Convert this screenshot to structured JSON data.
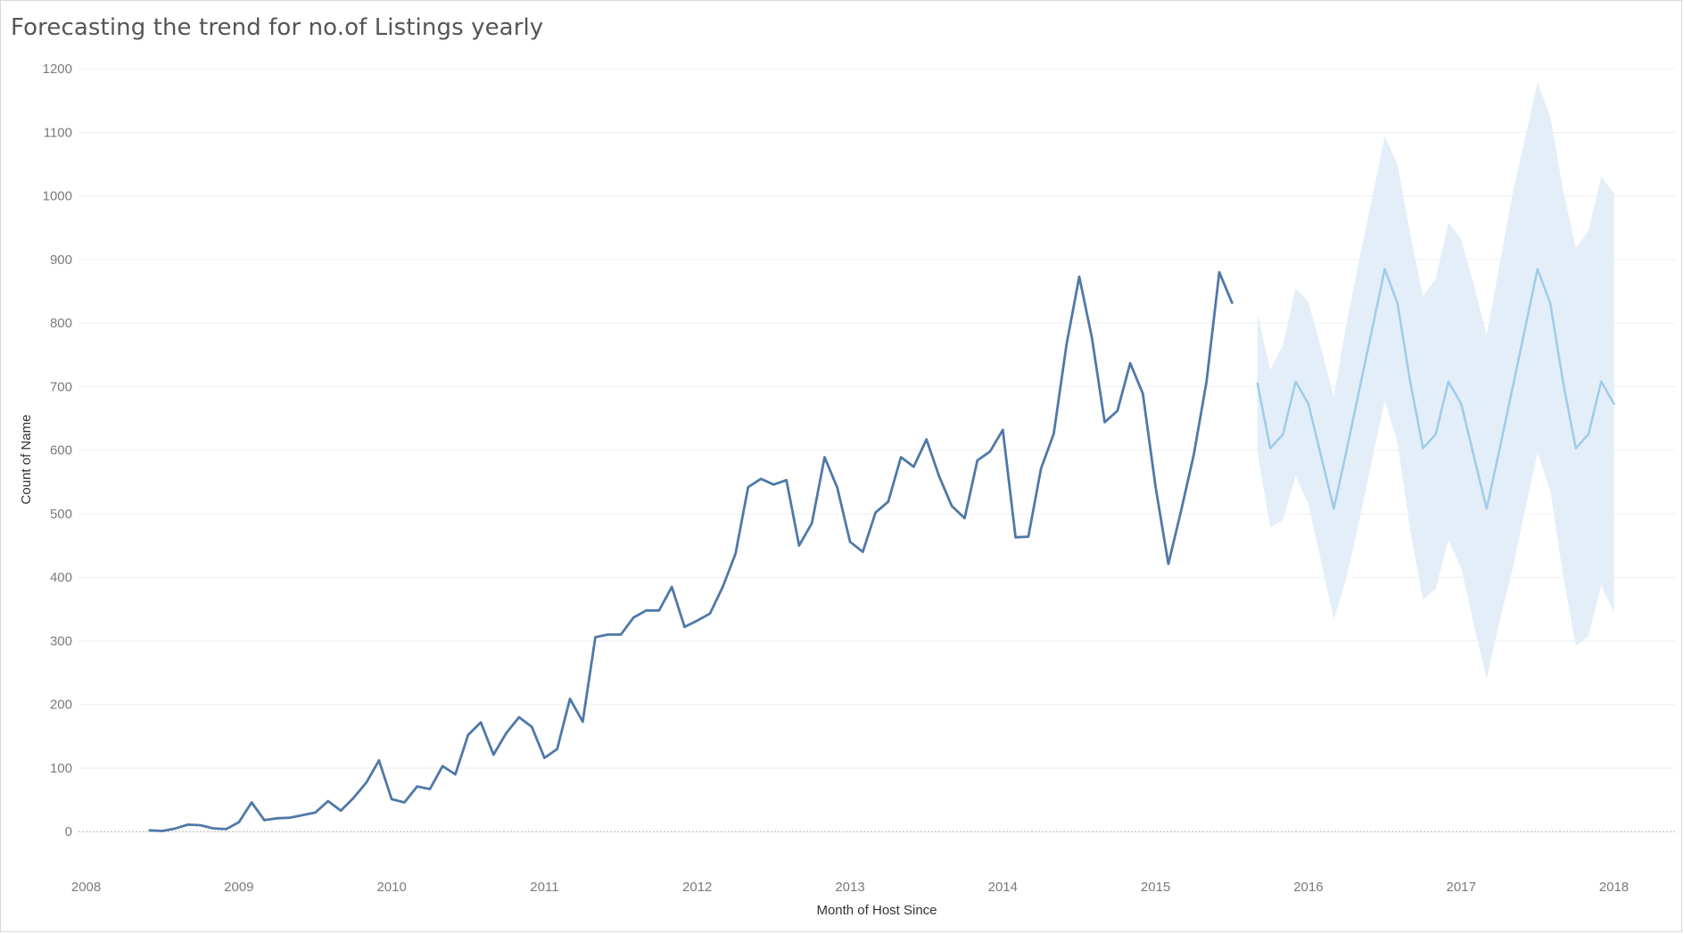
{
  "chart_data": {
    "type": "line",
    "title": "Forecasting the trend for no.of Listings yearly",
    "xlabel": "Month of Host Since",
    "ylabel": "Count of Name",
    "ylim": [
      -60,
      1210
    ],
    "xlim": [
      2007.95,
      2018.4
    ],
    "yticks": [
      0,
      100,
      200,
      300,
      400,
      500,
      600,
      700,
      800,
      900,
      1000,
      1100,
      1200
    ],
    "xticks": [
      2008,
      2009,
      2010,
      2011,
      2012,
      2013,
      2014,
      2015,
      2016,
      2017,
      2018
    ],
    "ytick_labels": [
      "0",
      "100",
      "200",
      "300",
      "400",
      "500",
      "600",
      "700",
      "800",
      "900",
      "1000",
      "1100",
      "1200"
    ],
    "xtick_labels": [
      "2008",
      "2009",
      "2010",
      "2011",
      "2012",
      "2013",
      "2014",
      "2015",
      "2016",
      "2017",
      "2018"
    ],
    "grid": true,
    "colors": {
      "actual": "#4e79a7",
      "forecast": "#a0cbe8",
      "band": "#e3eef8",
      "grid": "#efefef",
      "zero": "#b0b0b0"
    },
    "series": [
      {
        "kind": "actual",
        "x": [
          "2008-06",
          "2008-07",
          "2008-08",
          "2008-09",
          "2008-10",
          "2008-11",
          "2008-12",
          "2009-01",
          "2009-02",
          "2009-03",
          "2009-04",
          "2009-05",
          "2009-06",
          "2009-07",
          "2009-08",
          "2009-09",
          "2009-10",
          "2009-11",
          "2009-12",
          "2010-01",
          "2010-02",
          "2010-03",
          "2010-04",
          "2010-05",
          "2010-06",
          "2010-07",
          "2010-08",
          "2010-09",
          "2010-10",
          "2010-11",
          "2010-12",
          "2011-01",
          "2011-02",
          "2011-03",
          "2011-04",
          "2011-05",
          "2011-06",
          "2011-07",
          "2011-08",
          "2011-09",
          "2011-10",
          "2011-11",
          "2011-12",
          "2012-01",
          "2012-02",
          "2012-03",
          "2012-04",
          "2012-05",
          "2012-06",
          "2012-07",
          "2012-08",
          "2012-09",
          "2012-10",
          "2012-11",
          "2012-12",
          "2013-01",
          "2013-02",
          "2013-03",
          "2013-04",
          "2013-05",
          "2013-06",
          "2013-07",
          "2013-08",
          "2013-09",
          "2013-10",
          "2013-11",
          "2013-12",
          "2014-01",
          "2014-02",
          "2014-03",
          "2014-04",
          "2014-05",
          "2014-06",
          "2014-07",
          "2014-08",
          "2014-09",
          "2014-10",
          "2014-11",
          "2014-12",
          "2015-01",
          "2015-02",
          "2015-03",
          "2015-04",
          "2015-05",
          "2015-06",
          "2015-07",
          "2015-08"
        ],
        "values": [
          2,
          1,
          5,
          11,
          10,
          5,
          4,
          15,
          46,
          18,
          21,
          22,
          26,
          30,
          48,
          33,
          53,
          77,
          112,
          51,
          46,
          71,
          67,
          103,
          90,
          152,
          172,
          121,
          155,
          180,
          165,
          116,
          130,
          209,
          173,
          306,
          310,
          310,
          337,
          348,
          348,
          385,
          322,
          332,
          343,
          385,
          437,
          542,
          555,
          546,
          553,
          450,
          485,
          589,
          541,
          456,
          440,
          502,
          519,
          589,
          574,
          617,
          559,
          512,
          493,
          584,
          598,
          632,
          463,
          464,
          571,
          626,
          766,
          873,
          777,
          644,
          662,
          737,
          689,
          542,
          421,
          505,
          593,
          708,
          880,
          832,
          null
        ]
      },
      {
        "kind": "forecast",
        "x": [
          "2015-09",
          "2015-10",
          "2015-11",
          "2015-12",
          "2016-01",
          "2016-02",
          "2016-03",
          "2016-04",
          "2016-05",
          "2016-06",
          "2016-07",
          "2016-08",
          "2016-09",
          "2016-10",
          "2016-11",
          "2016-12",
          "2017-01",
          "2017-02",
          "2017-03",
          "2017-04",
          "2017-05",
          "2017-06",
          "2017-07",
          "2017-08",
          "2017-09",
          "2017-10",
          "2017-11",
          "2017-12",
          "2018-01"
        ],
        "values": [
          705,
          603,
          625,
          708,
          673,
          590,
          508,
          600,
          695,
          790,
          885,
          831,
          707,
          603,
          625,
          708,
          673,
          590,
          508,
          600,
          695,
          790,
          885,
          831,
          707,
          603,
          625,
          708,
          673
        ],
        "upper": [
          815,
          726,
          765,
          855,
          833,
          760,
          684,
          800,
          900,
          996,
          1094,
          1050,
          940,
          842,
          870,
          958,
          932,
          860,
          781,
          890,
          1000,
          1090,
          1178,
          1125,
          1010,
          918,
          945,
          1030,
          1005
        ],
        "lower": [
          597,
          479,
          490,
          560,
          515,
          425,
          333,
          400,
          490,
          585,
          678,
          612,
          474,
          365,
          382,
          459,
          415,
          325,
          240,
          330,
          410,
          505,
          596,
          537,
          404,
          292,
          308,
          387,
          345
        ]
      }
    ]
  }
}
